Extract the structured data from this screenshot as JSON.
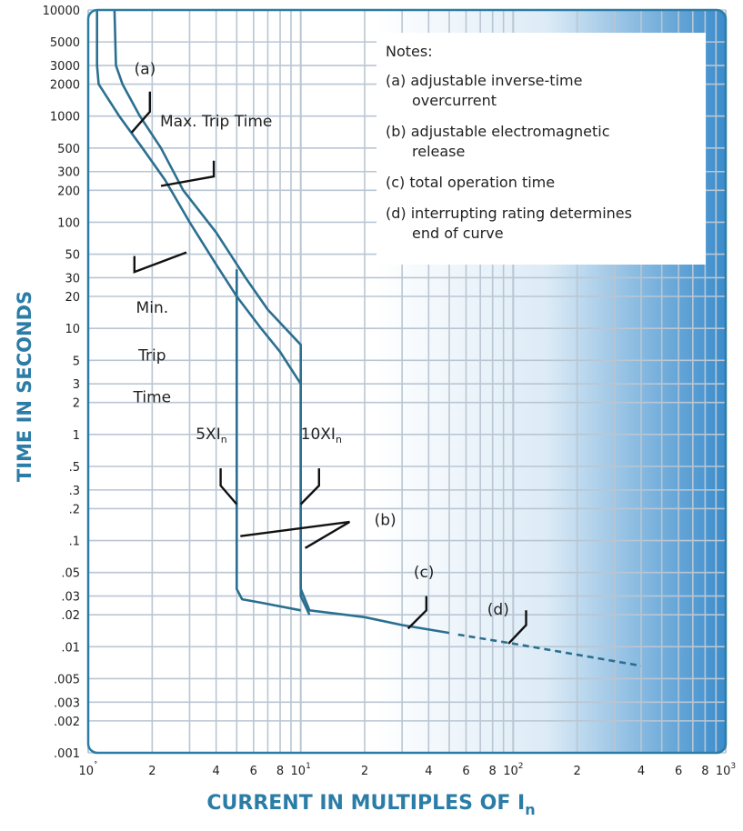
{
  "chart_data": {
    "type": "line",
    "title": "",
    "xlabel": "CURRENT IN MULTIPLES OF I",
    "xlabel_sub": "n",
    "ylabel": "TIME IN SECONDS",
    "x_scale": "log",
    "y_scale": "log",
    "xlim": [
      1,
      1000
    ],
    "ylim": [
      0.001,
      10000
    ],
    "grid": true,
    "x_ticks": [
      {
        "label": "10",
        "sup": "˚",
        "value": 1
      },
      {
        "label": "2",
        "sup": "",
        "value": 2
      },
      {
        "label": "4",
        "sup": "",
        "value": 4
      },
      {
        "label": "6",
        "sup": "",
        "value": 6
      },
      {
        "label": "8",
        "sup": "",
        "value": 8
      },
      {
        "label": "10",
        "sup": "1",
        "value": 10
      },
      {
        "label": "2",
        "sup": "",
        "value": 20
      },
      {
        "label": "4",
        "sup": "",
        "value": 40
      },
      {
        "label": "6",
        "sup": "",
        "value": 60
      },
      {
        "label": "8",
        "sup": "",
        "value": 80
      },
      {
        "label": "10",
        "sup": "2",
        "value": 100
      },
      {
        "label": "2",
        "sup": "",
        "value": 200
      },
      {
        "label": "4",
        "sup": "",
        "value": 400
      },
      {
        "label": "6",
        "sup": "",
        "value": 600
      },
      {
        "label": "8",
        "sup": "",
        "value": 800
      },
      {
        "label": "10",
        "sup": "3",
        "value": 1000
      }
    ],
    "y_ticks": [
      {
        "label": "10000",
        "value": 10000
      },
      {
        "label": "5000",
        "value": 5000
      },
      {
        "label": "3000",
        "value": 3000
      },
      {
        "label": "2000",
        "value": 2000
      },
      {
        "label": "1000",
        "value": 1000
      },
      {
        "label": "500",
        "value": 500
      },
      {
        "label": "300",
        "value": 300
      },
      {
        "label": "200",
        "value": 200
      },
      {
        "label": "100",
        "value": 100
      },
      {
        "label": "50",
        "value": 50
      },
      {
        "label": "30",
        "value": 30
      },
      {
        "label": "20",
        "value": 20
      },
      {
        "label": "10",
        "value": 10
      },
      {
        "label": "5",
        "value": 5
      },
      {
        "label": "3",
        "value": 3
      },
      {
        "label": "2",
        "value": 2
      },
      {
        "label": "1",
        "value": 1
      },
      {
        "label": ".5",
        "value": 0.5
      },
      {
        "label": ".3",
        "value": 0.3
      },
      {
        "label": ".2",
        "value": 0.2
      },
      {
        "label": ".1",
        "value": 0.1
      },
      {
        "label": ".05",
        "value": 0.05
      },
      {
        "label": ".03",
        "value": 0.03
      },
      {
        "label": ".02",
        "value": 0.02
      },
      {
        "label": ".01",
        "value": 0.01
      },
      {
        "label": ".005",
        "value": 0.005
      },
      {
        "label": ".003",
        "value": 0.003
      },
      {
        "label": ".002",
        "value": 0.002
      },
      {
        "label": ".001",
        "value": 0.001
      }
    ],
    "x_grid": [
      1,
      2,
      3,
      4,
      5,
      6,
      7,
      8,
      9,
      10,
      20,
      30,
      40,
      50,
      60,
      70,
      80,
      90,
      100,
      200,
      300,
      400,
      500,
      600,
      700,
      800,
      900,
      1000
    ],
    "y_grid": [
      10000,
      5000,
      3000,
      2000,
      1000,
      500,
      300,
      200,
      100,
      50,
      30,
      20,
      10,
      5,
      3,
      2,
      1,
      0.5,
      0.3,
      0.2,
      0.1,
      0.05,
      0.03,
      0.02,
      0.01,
      0.005,
      0.003,
      0.002,
      0.001
    ],
    "series": [
      {
        "style": "solid",
        "points": [
          [
            1.1,
            10000
          ],
          [
            1.1,
            3000
          ],
          [
            1.12,
            2000
          ],
          [
            1.4,
            1000
          ],
          [
            1.8,
            500
          ],
          [
            2.3,
            250
          ],
          [
            3,
            100
          ],
          [
            4,
            40
          ],
          [
            5,
            20
          ],
          [
            6.5,
            10
          ],
          [
            8,
            6
          ],
          [
            10,
            3
          ],
          [
            10,
            0.035
          ],
          [
            11,
            0.022
          ],
          [
            20,
            0.019
          ],
          [
            30,
            0.016
          ],
          [
            50,
            0.0135
          ]
        ]
      },
      {
        "style": "solid",
        "points": [
          [
            1.33,
            10000
          ],
          [
            1.35,
            3000
          ],
          [
            1.45,
            2000
          ],
          [
            1.75,
            1000
          ],
          [
            2.2,
            500
          ],
          [
            2.8,
            200
          ],
          [
            4,
            80
          ],
          [
            5.5,
            30
          ],
          [
            7,
            15
          ],
          [
            10,
            7
          ],
          [
            10,
            0.03
          ],
          [
            11,
            0.02
          ]
        ]
      },
      {
        "style": "solid",
        "points": [
          [
            5,
            36
          ],
          [
            5,
            0.035
          ],
          [
            5.3,
            0.028
          ],
          [
            6.5,
            0.026
          ],
          [
            10,
            0.022
          ]
        ]
      },
      {
        "style": "dashed",
        "points": [
          [
            55,
            0.013
          ],
          [
            100,
            0.0107
          ],
          [
            400,
            0.0066
          ]
        ]
      }
    ],
    "annotations": [
      {
        "text": "(a)",
        "x": 1.85,
        "y": 2500
      },
      {
        "text": "Max. Trip Time",
        "x": 4.0,
        "y": 800
      },
      {
        "text": "Min.",
        "x": 2.0,
        "y": 14
      },
      {
        "text": "Trip",
        "x": 2.0,
        "y": 5
      },
      {
        "text": "Time",
        "x": 2.0,
        "y": 2
      },
      {
        "text": "5XI",
        "sub": "n",
        "x": 3.8,
        "y": 0.9
      },
      {
        "text": "10XI",
        "sub": "n",
        "x": 12.5,
        "y": 0.9
      },
      {
        "text": "(b)",
        "x": 25,
        "y": 0.14
      },
      {
        "text": "(c)",
        "x": 38,
        "y": 0.045
      },
      {
        "text": "(d)",
        "x": 85,
        "y": 0.02
      }
    ],
    "leaders": [
      [
        [
          1.6,
          700
        ],
        [
          1.95,
          1100
        ],
        [
          1.95,
          1700
        ]
      ],
      [
        [
          2.2,
          220
        ],
        [
          3.9,
          270
        ],
        [
          3.9,
          380
        ]
      ],
      [
        [
          2.9,
          52
        ],
        [
          1.65,
          34
        ],
        [
          1.65,
          48
        ]
      ],
      [
        [
          5,
          0.22
        ],
        [
          4.2,
          0.33
        ],
        [
          4.2,
          0.48
        ]
      ],
      [
        [
          10,
          0.22
        ],
        [
          12.2,
          0.33
        ],
        [
          12.2,
          0.48
        ]
      ],
      [
        [
          5.2,
          0.11
        ],
        [
          17,
          0.15
        ]
      ],
      [
        [
          10.5,
          0.085
        ],
        [
          17,
          0.15
        ]
      ],
      [
        [
          32,
          0.0148
        ],
        [
          39,
          0.022
        ],
        [
          39,
          0.03
        ]
      ],
      [
        [
          95,
          0.0107
        ],
        [
          115,
          0.016
        ],
        [
          115,
          0.022
        ]
      ]
    ],
    "notes": {
      "header": "Notes:",
      "items": [
        [
          "(a) adjustable inverse-time",
          "overcurrent"
        ],
        [
          "(b) adjustable electromagnetic",
          "release"
        ],
        [
          "(c) total operation time"
        ],
        [
          "(d) interrupting rating determines",
          "end of curve"
        ]
      ]
    },
    "colors": {
      "curve": "#2b6f90",
      "grid": "#b9c6d3",
      "frame": "#2b7ca6",
      "shade": "#3a8ccc",
      "axis_title": "#2b7ca6",
      "text": "#222222"
    }
  }
}
